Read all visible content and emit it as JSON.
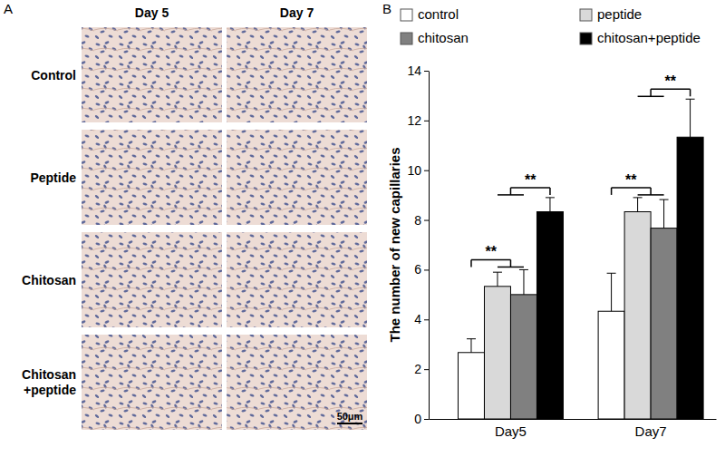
{
  "figure": {
    "panel_labels": [
      "A",
      "B"
    ]
  },
  "panel_a": {
    "columns": [
      "Day 5",
      "Day 7"
    ],
    "rows": [
      [
        "Control"
      ],
      [
        "Peptide"
      ],
      [
        "Chitosan"
      ],
      [
        "Chitosan",
        "+peptide"
      ]
    ],
    "scale_bar": "50μm"
  },
  "chart_data": {
    "type": "bar",
    "y_label": "The number of new capillaries",
    "categories": [
      "Day5",
      "Day7"
    ],
    "series": [
      {
        "name": "control",
        "color": "#ffffff",
        "values": [
          2.67,
          4.33
        ],
        "errors": [
          0.55,
          1.53
        ]
      },
      {
        "name": "peptide",
        "color": "#d9d9d9",
        "values": [
          5.33,
          8.33
        ],
        "errors": [
          0.57,
          0.57
        ]
      },
      {
        "name": "chitosan",
        "color": "#808080",
        "values": [
          5.0,
          7.67
        ],
        "errors": [
          1.0,
          1.15
        ]
      },
      {
        "name": "chitosan+peptide",
        "color": "#000000",
        "values": [
          8.33,
          11.33
        ],
        "errors": [
          0.57,
          1.53
        ]
      }
    ],
    "ylim": [
      0,
      14
    ],
    "yticks": [
      0,
      2,
      4,
      6,
      8,
      10,
      12,
      14
    ],
    "legend": "top",
    "annotations": [
      {
        "category": "Day5",
        "groups": [
          [
            "control"
          ],
          [
            "peptide",
            "chitosan"
          ]
        ],
        "text": "**"
      },
      {
        "category": "Day5",
        "groups": [
          [
            "peptide",
            "chitosan"
          ],
          [
            "chitosan+peptide"
          ]
        ],
        "text": "**"
      },
      {
        "category": "Day7",
        "groups": [
          [
            "control"
          ],
          [
            "peptide",
            "chitosan"
          ]
        ],
        "text": "**"
      },
      {
        "category": "Day7",
        "groups": [
          [
            "peptide",
            "chitosan"
          ],
          [
            "chitosan+peptide"
          ]
        ],
        "text": "**"
      }
    ]
  }
}
